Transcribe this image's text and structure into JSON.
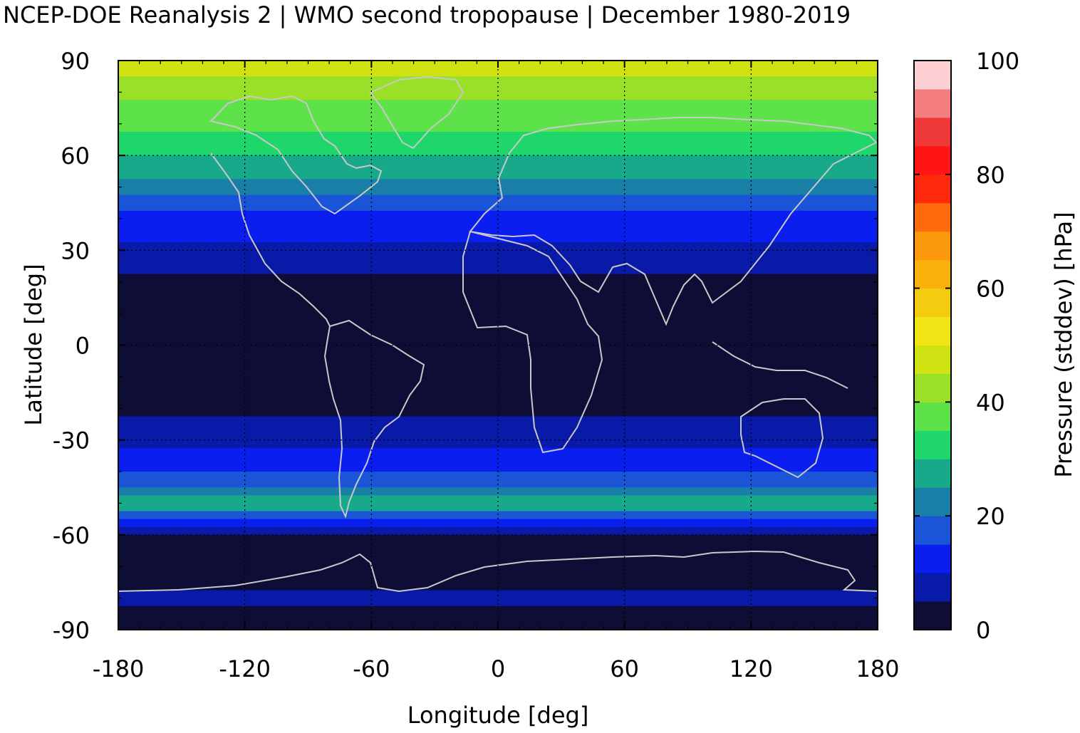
{
  "chart_data": {
    "type": "heatmap",
    "title": "NCEP-DOE Reanalysis 2 | WMO second tropopause | December 1980-2019",
    "xlabel": "Longitude [deg]",
    "ylabel": "Latitude [deg]",
    "colorbar_label": "Pressure (stddev) [hPa]",
    "xlim": [
      -180,
      180
    ],
    "ylim": [
      -90,
      90
    ],
    "x_ticks": [
      -180,
      -120,
      -60,
      0,
      60,
      120,
      180
    ],
    "y_ticks": [
      90,
      60,
      30,
      0,
      -30,
      -60,
      -90
    ],
    "colorbar_ticks": [
      100,
      80,
      60,
      40,
      20,
      0
    ],
    "colorbar_range": [
      0,
      100
    ],
    "colorbar_levels": [
      {
        "from": 0,
        "to": 5,
        "color": "#0d0d35"
      },
      {
        "from": 5,
        "to": 10,
        "color": "#0a1aa8"
      },
      {
        "from": 10,
        "to": 15,
        "color": "#0a1ef0"
      },
      {
        "from": 15,
        "to": 20,
        "color": "#1a55d8"
      },
      {
        "from": 20,
        "to": 25,
        "color": "#1a7fa6"
      },
      {
        "from": 25,
        "to": 30,
        "color": "#17a98a"
      },
      {
        "from": 30,
        "to": 35,
        "color": "#1ed66a"
      },
      {
        "from": 35,
        "to": 40,
        "color": "#5ee24a"
      },
      {
        "from": 40,
        "to": 45,
        "color": "#9ae028"
      },
      {
        "from": 45,
        "to": 50,
        "color": "#cfe313"
      },
      {
        "from": 50,
        "to": 55,
        "color": "#f0e616"
      },
      {
        "from": 55,
        "to": 60,
        "color": "#f3cc10"
      },
      {
        "from": 60,
        "to": 65,
        "color": "#f8b10a"
      },
      {
        "from": 65,
        "to": 70,
        "color": "#fc980b"
      },
      {
        "from": 70,
        "to": 75,
        "color": "#ff6a0d"
      },
      {
        "from": 75,
        "to": 80,
        "color": "#ff2a0d"
      },
      {
        "from": 80,
        "to": 85,
        "color": "#ff1515"
      },
      {
        "from": 85,
        "to": 90,
        "color": "#f03a3a"
      },
      {
        "from": 90,
        "to": 95,
        "color": "#f47d7d"
      },
      {
        "from": 95,
        "to": 100,
        "color": "#fccfd3"
      }
    ],
    "zonal_profile": {
      "description_units": "latitude [deg] vs. pressure stddev [hPa]",
      "lat": [
        90,
        80,
        70,
        60,
        50,
        40,
        30,
        20,
        10,
        0,
        -10,
        -20,
        -30,
        -40,
        -50,
        -60,
        -70,
        -80,
        -90
      ],
      "value": [
        48,
        42,
        36,
        30,
        22,
        12,
        9,
        3,
        2,
        2,
        2,
        3,
        9,
        14,
        28,
        4,
        2,
        6,
        2
      ]
    },
    "coastline_color": "#c8c8c8",
    "grid": true
  }
}
